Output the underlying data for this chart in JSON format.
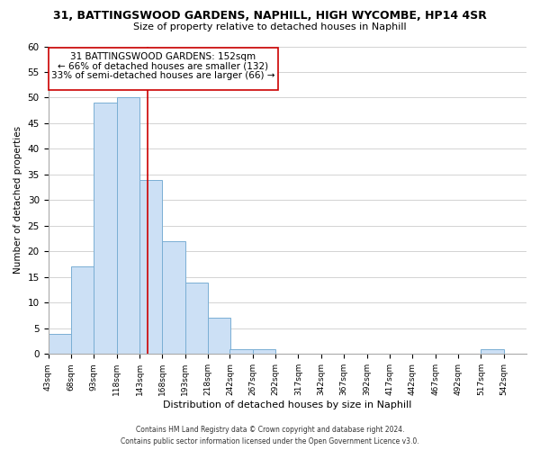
{
  "title1": "31, BATTINGSWOOD GARDENS, NAPHILL, HIGH WYCOMBE, HP14 4SR",
  "title2": "Size of property relative to detached houses in Naphill",
  "xlabel": "Distribution of detached houses by size in Naphill",
  "ylabel": "Number of detached properties",
  "bins_left": [
    43,
    68,
    93,
    118,
    143,
    168,
    193,
    218,
    242,
    267,
    292,
    317,
    342,
    367,
    392,
    417,
    442,
    467,
    492,
    517,
    542
  ],
  "bin_width": 25,
  "counts": [
    4,
    17,
    49,
    50,
    34,
    22,
    14,
    7,
    1,
    1,
    0,
    0,
    0,
    0,
    0,
    0,
    0,
    0,
    0,
    1,
    0
  ],
  "bar_color": "#cce0f5",
  "bar_edge_color": "#7aafd4",
  "ylim": [
    0,
    60
  ],
  "yticks": [
    0,
    5,
    10,
    15,
    20,
    25,
    30,
    35,
    40,
    45,
    50,
    55,
    60
  ],
  "property_value": 152,
  "vline_color": "#cc0000",
  "annotation_text_line1": "31 BATTINGSWOOD GARDENS: 152sqm",
  "annotation_text_line2": "← 66% of detached houses are smaller (132)",
  "annotation_text_line3": "33% of semi-detached houses are larger (66) →",
  "annotation_box_facecolor": "#ffffff",
  "annotation_box_edgecolor": "#cc0000",
  "footer_text": "Contains HM Land Registry data © Crown copyright and database right 2024.\nContains public sector information licensed under the Open Government Licence v3.0.",
  "tick_labels": [
    "43sqm",
    "68sqm",
    "93sqm",
    "118sqm",
    "143sqm",
    "168sqm",
    "193sqm",
    "218sqm",
    "242sqm",
    "267sqm",
    "292sqm",
    "317sqm",
    "342sqm",
    "367sqm",
    "392sqm",
    "417sqm",
    "442sqm",
    "467sqm",
    "492sqm",
    "517sqm",
    "542sqm"
  ],
  "background_color": "#ffffff",
  "grid_color": "#cccccc",
  "title1_fontsize": 9,
  "title2_fontsize": 8,
  "xlabel_fontsize": 8,
  "ylabel_fontsize": 7.5,
  "tick_fontsize": 6.5,
  "ytick_fontsize": 7.5,
  "annot_fontsize": 7.5,
  "footer_fontsize": 5.5
}
